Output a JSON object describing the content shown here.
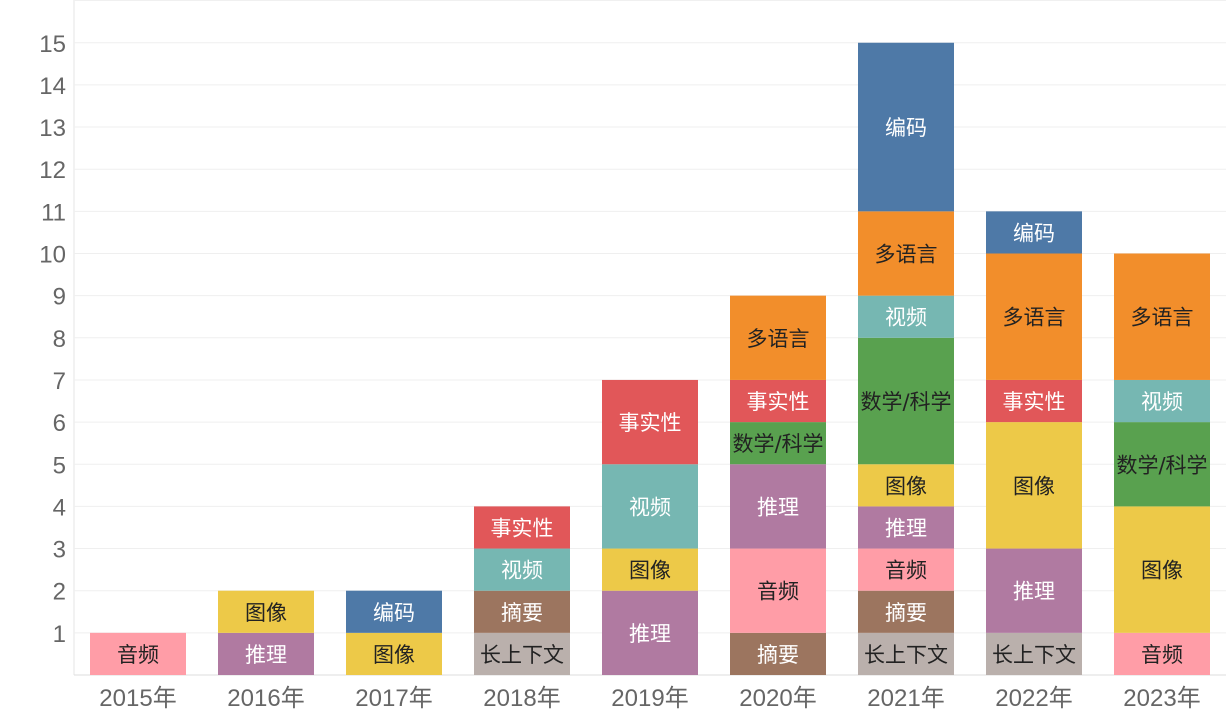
{
  "chart_data": {
    "type": "bar",
    "stacked": true,
    "title": "",
    "xlabel": "",
    "ylabel": "",
    "ylim": [
      0,
      15
    ],
    "yticks": [
      1,
      2,
      3,
      4,
      5,
      6,
      7,
      8,
      9,
      10,
      11,
      12,
      13,
      14,
      15
    ],
    "grid": true,
    "legend": "none",
    "categories": [
      "2015年",
      "2016年",
      "2017年",
      "2018年",
      "2019年",
      "2020年",
      "2021年",
      "2022年",
      "2023年"
    ],
    "colors": {
      "音频": "#FF9DA7",
      "推理": "#B07AA1",
      "图像": "#EDC948",
      "编码": "#4E79A7",
      "长上下文": "#BAB0AC",
      "摘要": "#9C755F",
      "视频": "#76B7B2",
      "事实性": "#E15759",
      "数学/科学": "#59A14F",
      "多语言": "#F28E2B"
    },
    "light_text": [
      "推理",
      "编码",
      "摘要",
      "视频",
      "事实性"
    ],
    "stacks": [
      [
        {
          "name": "音频",
          "value": 1
        }
      ],
      [
        {
          "name": "推理",
          "value": 1
        },
        {
          "name": "图像",
          "value": 1
        }
      ],
      [
        {
          "name": "图像",
          "value": 1
        },
        {
          "name": "编码",
          "value": 1
        }
      ],
      [
        {
          "name": "长上下文",
          "value": 1
        },
        {
          "name": "摘要",
          "value": 1
        },
        {
          "name": "视频",
          "value": 1
        },
        {
          "name": "事实性",
          "value": 1
        }
      ],
      [
        {
          "name": "推理",
          "value": 2
        },
        {
          "name": "图像",
          "value": 1
        },
        {
          "name": "视频",
          "value": 2
        },
        {
          "name": "事实性",
          "value": 2
        }
      ],
      [
        {
          "name": "摘要",
          "value": 1
        },
        {
          "name": "音频",
          "value": 2
        },
        {
          "name": "推理",
          "value": 2
        },
        {
          "name": "数学/科学",
          "value": 1
        },
        {
          "name": "事实性",
          "value": 1
        },
        {
          "name": "多语言",
          "value": 2
        }
      ],
      [
        {
          "name": "长上下文",
          "value": 1
        },
        {
          "name": "摘要",
          "value": 1
        },
        {
          "name": "音频",
          "value": 1
        },
        {
          "name": "推理",
          "value": 1
        },
        {
          "name": "图像",
          "value": 1
        },
        {
          "name": "数学/科学",
          "value": 3
        },
        {
          "name": "视频",
          "value": 1
        },
        {
          "name": "多语言",
          "value": 2
        },
        {
          "name": "编码",
          "value": 4
        }
      ],
      [
        {
          "name": "长上下文",
          "value": 1
        },
        {
          "name": "推理",
          "value": 2
        },
        {
          "name": "图像",
          "value": 3
        },
        {
          "name": "事实性",
          "value": 1
        },
        {
          "name": "多语言",
          "value": 3
        },
        {
          "name": "编码",
          "value": 1
        }
      ],
      [
        {
          "name": "音频",
          "value": 1
        },
        {
          "name": "图像",
          "value": 3
        },
        {
          "name": "数学/科学",
          "value": 2
        },
        {
          "name": "视频",
          "value": 1
        },
        {
          "name": "多语言",
          "value": 3
        }
      ]
    ]
  }
}
